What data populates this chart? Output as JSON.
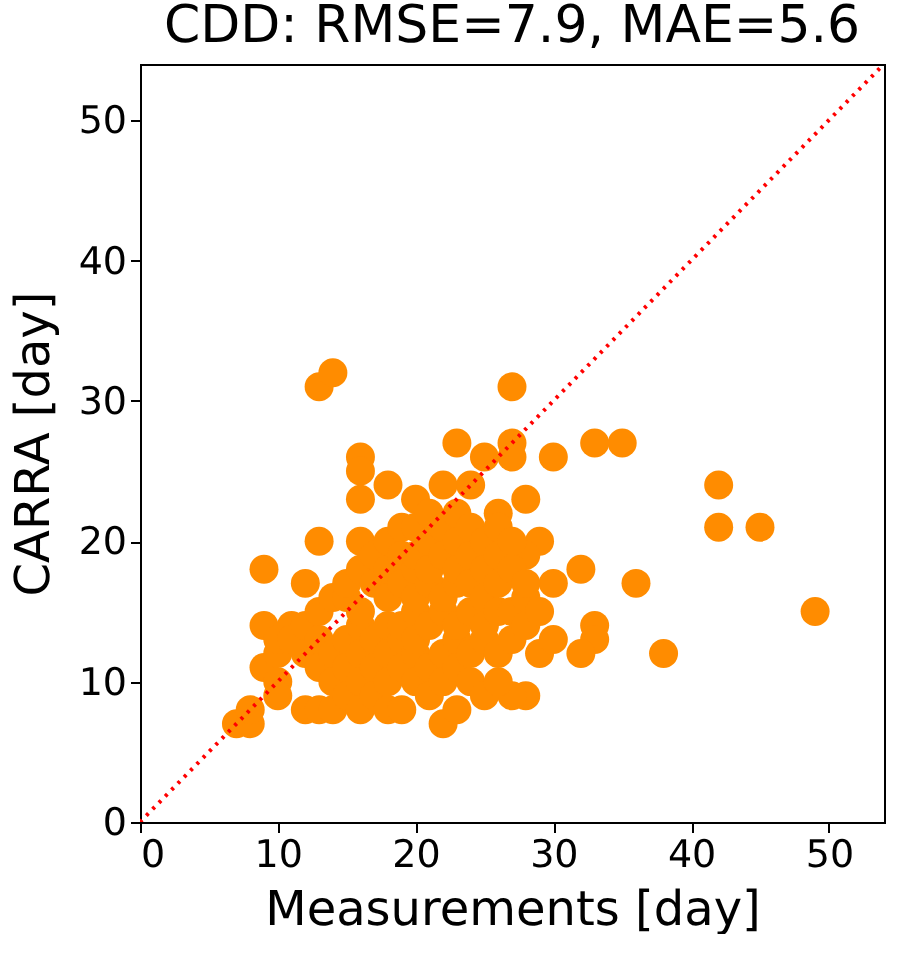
{
  "chart_data": {
    "type": "scatter",
    "title": "CDD: RMSE=7.9, MAE=5.6",
    "xlabel": "Measurements [day]",
    "ylabel": "CARRA [day]",
    "xlim": [
      0,
      54
    ],
    "ylim": [
      0,
      54
    ],
    "xticks": [
      0,
      10,
      20,
      30,
      40,
      50
    ],
    "yticks": [
      0,
      10,
      20,
      30,
      40,
      50
    ],
    "grid": false,
    "series": [
      {
        "marker": "circle",
        "color": "#ff8c00",
        "x": [
          49,
          45,
          42,
          42,
          38,
          36,
          35,
          33,
          33,
          33,
          32,
          32,
          30,
          30,
          29,
          28,
          28,
          27,
          27,
          27,
          28,
          27,
          7,
          8,
          8,
          9,
          9,
          9,
          10,
          10,
          11,
          12,
          12,
          13,
          14,
          13,
          16,
          16,
          16,
          18,
          20,
          22,
          23,
          24,
          25,
          26,
          10,
          10,
          11,
          12,
          12,
          13,
          13,
          13,
          13,
          14,
          14,
          14,
          14,
          15,
          15,
          15,
          15,
          15,
          16,
          16,
          16,
          16,
          16,
          16,
          16,
          17,
          17,
          17,
          17,
          17,
          18,
          18,
          18,
          18,
          18,
          18,
          18,
          19,
          19,
          19,
          19,
          19,
          19,
          19,
          20,
          20,
          20,
          20,
          20,
          20,
          20,
          20,
          21,
          21,
          21,
          21,
          21,
          21,
          21,
          22,
          22,
          22,
          22,
          22,
          22,
          22,
          23,
          23,
          23,
          23,
          23,
          23,
          23,
          23,
          24,
          24,
          24,
          24,
          24,
          24,
          25,
          25,
          25,
          25,
          25,
          25,
          26,
          26,
          26,
          26,
          26,
          26,
          27,
          27,
          27,
          27,
          28,
          28,
          28,
          29,
          29,
          30
        ],
        "values": [
          15,
          21,
          24,
          21,
          12,
          17,
          27,
          27,
          14,
          13,
          12,
          18,
          26,
          17,
          20,
          23,
          19,
          31,
          27,
          26,
          9,
          9,
          7,
          7,
          8,
          18,
          14,
          11,
          10,
          9,
          14,
          17,
          12,
          31,
          32,
          20,
          26,
          25,
          23,
          24,
          23,
          24,
          27,
          24,
          26,
          22,
          12,
          13,
          13,
          8,
          14,
          8,
          11,
          13,
          15,
          8,
          10,
          12,
          16,
          9,
          11,
          13,
          16,
          17,
          8,
          10,
          12,
          14,
          15,
          18,
          20,
          9,
          11,
          13,
          17,
          19,
          8,
          10,
          12,
          14,
          16,
          18,
          20,
          8,
          11,
          13,
          14,
          17,
          19,
          21,
          10,
          12,
          13,
          15,
          16,
          18,
          19,
          21,
          9,
          11,
          14,
          17,
          18,
          20,
          22,
          7,
          10,
          12,
          15,
          16,
          19,
          21,
          8,
          11,
          13,
          14,
          17,
          18,
          20,
          22,
          10,
          12,
          15,
          17,
          19,
          21,
          9,
          13,
          14,
          16,
          18,
          20,
          10,
          12,
          15,
          17,
          19,
          21,
          13,
          15,
          18,
          20,
          14,
          16,
          17,
          12,
          15,
          13
        ]
      },
      {
        "type": "line",
        "marker": "none",
        "color": "#ff0000",
        "line_style": "dotted",
        "x": [
          0,
          54
        ],
        "values": [
          0,
          54
        ]
      }
    ]
  }
}
